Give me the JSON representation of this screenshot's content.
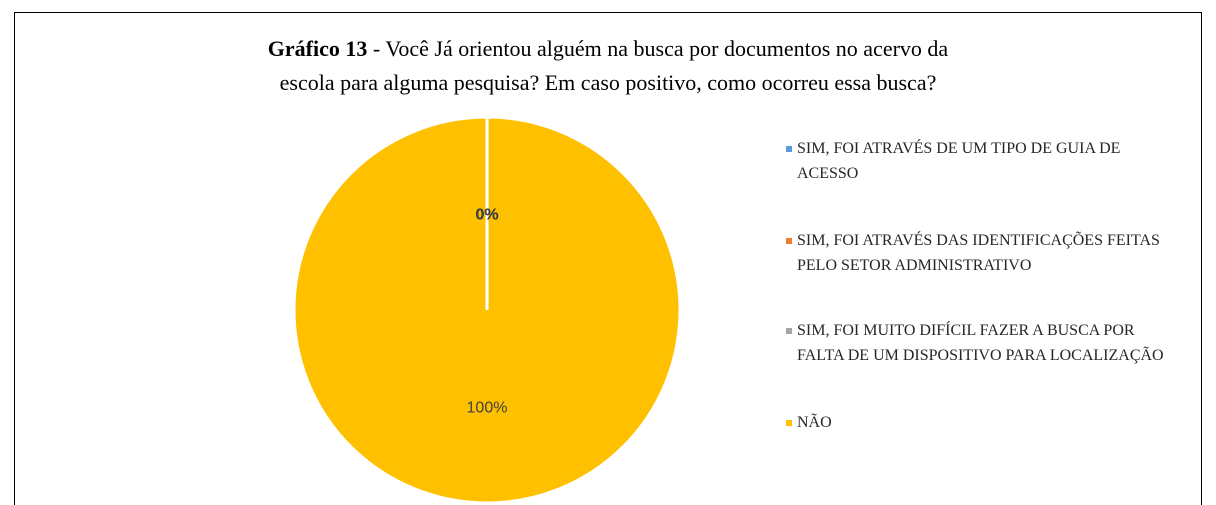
{
  "chart_data": {
    "type": "pie",
    "title": "Gráfico 13",
    "title_lines": [
      "- Você Já orientou alguém na busca por documentos no acervo da",
      "escola para alguma pesquisa? Em caso positivo, como ocorreu essa busca?"
    ],
    "categories": [
      "SIM, FOI ATRAVÉS DE UM TIPO DE GUIA DE ACESSO",
      "SIM, FOI ATRAVÉS DAS IDENTIFICAÇÕES FEITAS PELO SETOR ADMINISTRATIVO",
      "SIM, FOI MUITO DIFÍCIL FAZER A BUSCA POR FALTA DE UM DISPOSITIVO PARA LOCALIZAÇÃO",
      "NÃO"
    ],
    "values": [
      0,
      0,
      0,
      100
    ],
    "value_labels": [
      "0%",
      "0%",
      "0%",
      "100%"
    ],
    "colors": [
      "#5b9bd5",
      "#ed7d31",
      "#a5a5a5",
      "#ffc000"
    ],
    "legend": "right"
  }
}
